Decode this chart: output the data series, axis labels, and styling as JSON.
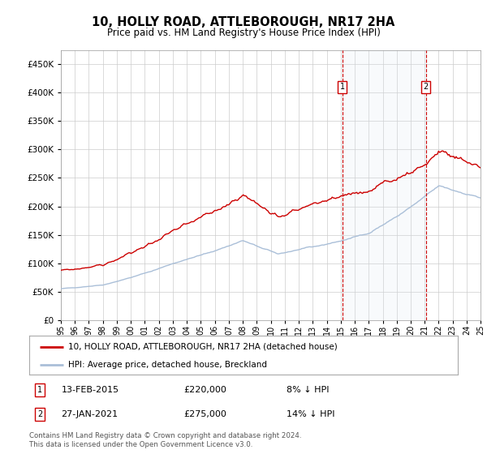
{
  "title": "10, HOLLY ROAD, ATTLEBOROUGH, NR17 2HA",
  "subtitle": "Price paid vs. HM Land Registry's House Price Index (HPI)",
  "ylim": [
    0,
    475000
  ],
  "yticks": [
    0,
    50000,
    100000,
    150000,
    200000,
    250000,
    300000,
    350000,
    400000,
    450000
  ],
  "start_year": 1995,
  "end_year": 2025,
  "hpi_color": "#aabfd8",
  "hpi_fill_color": "#dde8f3",
  "price_color": "#cc0000",
  "marker1": {
    "date_index": 20.12,
    "price": 220000,
    "label": "1",
    "date_str": "13-FEB-2015",
    "pct": "8% ↓ HPI"
  },
  "marker2": {
    "date_index": 26.08,
    "price": 275000,
    "label": "2",
    "date_str": "27-JAN-2021",
    "pct": "14% ↓ HPI"
  },
  "legend_entries": [
    "10, HOLLY ROAD, ATTLEBOROUGH, NR17 2HA (detached house)",
    "HPI: Average price, detached house, Breckland"
  ],
  "footnote": "Contains HM Land Registry data © Crown copyright and database right 2024.\nThis data is licensed under the Open Government Licence v3.0.",
  "background_color": "#ffffff",
  "grid_color": "#cccccc"
}
